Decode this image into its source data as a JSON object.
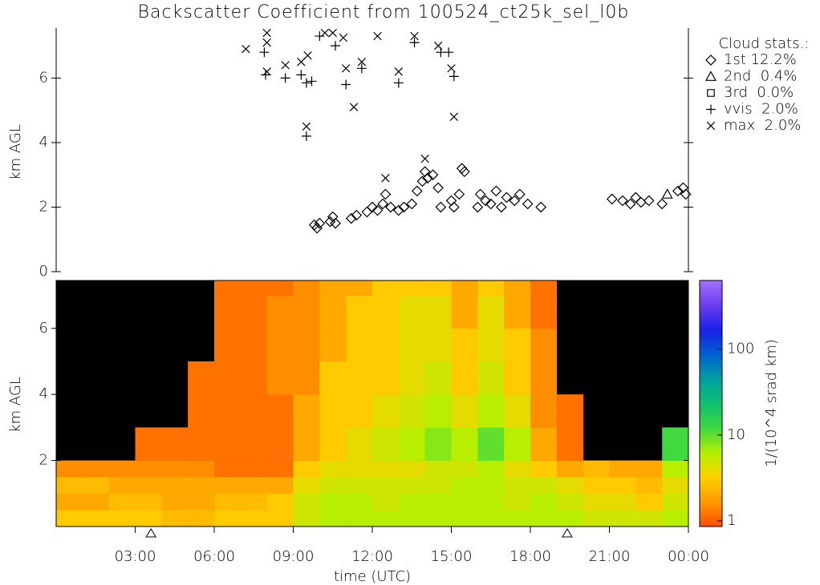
{
  "chart_data": [
    {
      "type": "scatter",
      "title": "Backscatter Coefficient from 100524_ct25k_sel_l0b",
      "ylabel": "km AGL",
      "xlim": [
        0,
        24
      ],
      "ylim": [
        0,
        7.55
      ],
      "yticks": [
        0,
        2,
        4,
        6
      ],
      "legend_title": "Cloud stats.:",
      "legend": "right",
      "series": [
        {
          "name": "1st 12.2%",
          "marker": "diamond",
          "color": "#000000",
          "x": [
            9.8,
            9.9,
            10.0,
            10.4,
            10.5,
            10.6,
            11.2,
            11.4,
            11.8,
            12.0,
            12.2,
            12.4,
            12.5,
            12.7,
            13.0,
            13.2,
            13.5,
            13.7,
            13.9,
            14.0,
            14.1,
            14.3,
            14.5,
            14.6,
            15.0,
            15.1,
            15.3,
            15.4,
            15.5,
            16.0,
            16.1,
            16.3,
            16.5,
            16.7,
            16.9,
            17.1,
            17.4,
            17.6,
            17.9,
            18.4,
            21.1,
            21.5,
            21.8,
            22.0,
            22.2,
            22.5,
            23.0,
            23.6,
            23.8,
            23.9
          ],
          "y": [
            1.45,
            1.35,
            1.5,
            1.55,
            1.7,
            1.5,
            1.65,
            1.75,
            1.85,
            2.0,
            1.9,
            2.1,
            2.4,
            2.0,
            1.9,
            2.0,
            2.1,
            2.5,
            2.8,
            3.1,
            2.9,
            3.0,
            2.6,
            2.0,
            2.2,
            2.0,
            2.4,
            3.2,
            3.1,
            2.0,
            2.4,
            2.2,
            2.1,
            2.5,
            2.0,
            2.3,
            2.2,
            2.4,
            2.1,
            2.0,
            2.25,
            2.2,
            2.1,
            2.3,
            2.15,
            2.2,
            2.1,
            2.5,
            2.6,
            2.4
          ]
        },
        {
          "name": "2nd  0.4%",
          "marker": "triangle",
          "color": "#000000",
          "x": [
            23.2
          ],
          "y": [
            2.4
          ]
        },
        {
          "name": "3rd  0.0%",
          "marker": "square",
          "color": "#000000",
          "x": [],
          "y": []
        },
        {
          "name": "vvis  2.0%",
          "marker": "plus",
          "color": "#000000",
          "x": [
            7.9,
            7.95,
            8.7,
            9.3,
            9.5,
            9.5,
            9.7,
            10.0,
            10.6,
            11.0,
            11.6,
            13.0,
            13.6,
            14.6,
            14.9,
            15.1
          ],
          "y": [
            6.8,
            6.1,
            6.0,
            6.1,
            4.2,
            5.85,
            5.9,
            7.3,
            7.0,
            5.8,
            6.3,
            5.85,
            7.1,
            6.8,
            6.8,
            6.05
          ]
        },
        {
          "name": "max  2.0%",
          "marker": "x",
          "color": "#000000",
          "x": [
            7.2,
            8.0,
            8.0,
            8.0,
            8.7,
            9.3,
            9.55,
            9.5,
            10.2,
            10.5,
            10.9,
            11.0,
            11.3,
            11.6,
            12.2,
            13.0,
            13.6,
            14.5,
            15.0,
            15.1,
            12.5,
            14.0
          ],
          "y": [
            6.9,
            7.4,
            7.1,
            6.2,
            6.4,
            6.5,
            6.7,
            4.5,
            7.4,
            7.4,
            7.25,
            6.3,
            5.1,
            6.5,
            7.3,
            6.2,
            7.3,
            7.0,
            6.3,
            4.8,
            2.9,
            3.5
          ]
        }
      ]
    },
    {
      "type": "heatmap",
      "ylabel": "km AGL",
      "xlabel": "time (UTC)",
      "xlim": [
        0,
        24
      ],
      "ylim": [
        0,
        7.45
      ],
      "xticks": [
        {
          "value": 3,
          "label": "03:00"
        },
        {
          "value": 6,
          "label": "06:00"
        },
        {
          "value": 9,
          "label": "09:00"
        },
        {
          "value": 12,
          "label": "12:00"
        },
        {
          "value": 15,
          "label": "15:00"
        },
        {
          "value": 18,
          "label": "18:00"
        },
        {
          "value": 21,
          "label": "21:00"
        },
        {
          "value": 24,
          "label": "00:00"
        }
      ],
      "yticks": [
        2,
        4,
        6
      ],
      "sun_markers": [
        3.6,
        19.4
      ],
      "background": "#000000",
      "x_edges": [
        0,
        1,
        2,
        3,
        4,
        5,
        6,
        7,
        8,
        9,
        10,
        11,
        12,
        13,
        14,
        15,
        16,
        17,
        18,
        19,
        20,
        21,
        22,
        23,
        24
      ],
      "y_edges": [
        0,
        0.5,
        1,
        1.5,
        2,
        3,
        4,
        5,
        6,
        7,
        7.45
      ],
      "z": [
        [
          3,
          3,
          3,
          3,
          2.5,
          2.5,
          3,
          3,
          3,
          5,
          6,
          6,
          6,
          6,
          6,
          6,
          6,
          6,
          6,
          6,
          5,
          5,
          5,
          6
        ],
        [
          2,
          2,
          2.5,
          2.5,
          2,
          2,
          2.5,
          2.5,
          3,
          5,
          6,
          6,
          5,
          6,
          6,
          6,
          6,
          5,
          6,
          5,
          4,
          4,
          3,
          5
        ],
        [
          2.5,
          2.5,
          2,
          2,
          2,
          2,
          2,
          2,
          2,
          4,
          5,
          5,
          5,
          5,
          5,
          6,
          6,
          5,
          5,
          4,
          3,
          3,
          2.5,
          4
        ],
        [
          1.5,
          1.5,
          1.5,
          1.5,
          1.5,
          1.5,
          1.2,
          1.2,
          1.2,
          3,
          4,
          4,
          4,
          4,
          5,
          5,
          6,
          4,
          3,
          2,
          2.5,
          2,
          2,
          6
        ],
        [
          null,
          null,
          null,
          1.2,
          1.2,
          1.2,
          1.2,
          1.2,
          1.2,
          2,
          3,
          4,
          5,
          6,
          8,
          6,
          10,
          6,
          2,
          1.2,
          null,
          null,
          null,
          12
        ],
        [
          null,
          null,
          null,
          null,
          null,
          1.2,
          1.2,
          1.2,
          1.2,
          2,
          3,
          3,
          4,
          5,
          6,
          4,
          6,
          4,
          1.5,
          1.2,
          null,
          null,
          null,
          null
        ],
        [
          null,
          null,
          null,
          null,
          null,
          1.2,
          1.2,
          1.2,
          1.5,
          1.5,
          3,
          3,
          3,
          4,
          5,
          3,
          5,
          3,
          1.5,
          null,
          null,
          null,
          null,
          null
        ],
        [
          null,
          null,
          null,
          null,
          null,
          null,
          1.2,
          1.2,
          1.5,
          1.5,
          2,
          3,
          3,
          4,
          4,
          3,
          4,
          3,
          1.5,
          null,
          null,
          null,
          null,
          null
        ],
        [
          null,
          null,
          null,
          null,
          null,
          null,
          1.2,
          1.2,
          1.5,
          1.5,
          2,
          3,
          3,
          4,
          4,
          2,
          4,
          2,
          1.2,
          null,
          null,
          null,
          null,
          null
        ],
        [
          null,
          null,
          null,
          null,
          null,
          null,
          1.2,
          1.2,
          1.2,
          1.5,
          2,
          2,
          3,
          3,
          3,
          2,
          3,
          2,
          1.2,
          null,
          null,
          null,
          null,
          null
        ]
      ],
      "colorbar_label": "1/(10^4 srad km)",
      "color_scale": "log",
      "clim": [
        0.86,
        630
      ],
      "cticks": [
        1,
        10,
        100
      ],
      "colormap": [
        "#ff4a00",
        "#ff9a00",
        "#ffd000",
        "#b4f000",
        "#40d840",
        "#10c070",
        "#00a0a0",
        "#0060d0",
        "#1a20e8",
        "#6a3cf0",
        "#a070ff"
      ]
    }
  ]
}
